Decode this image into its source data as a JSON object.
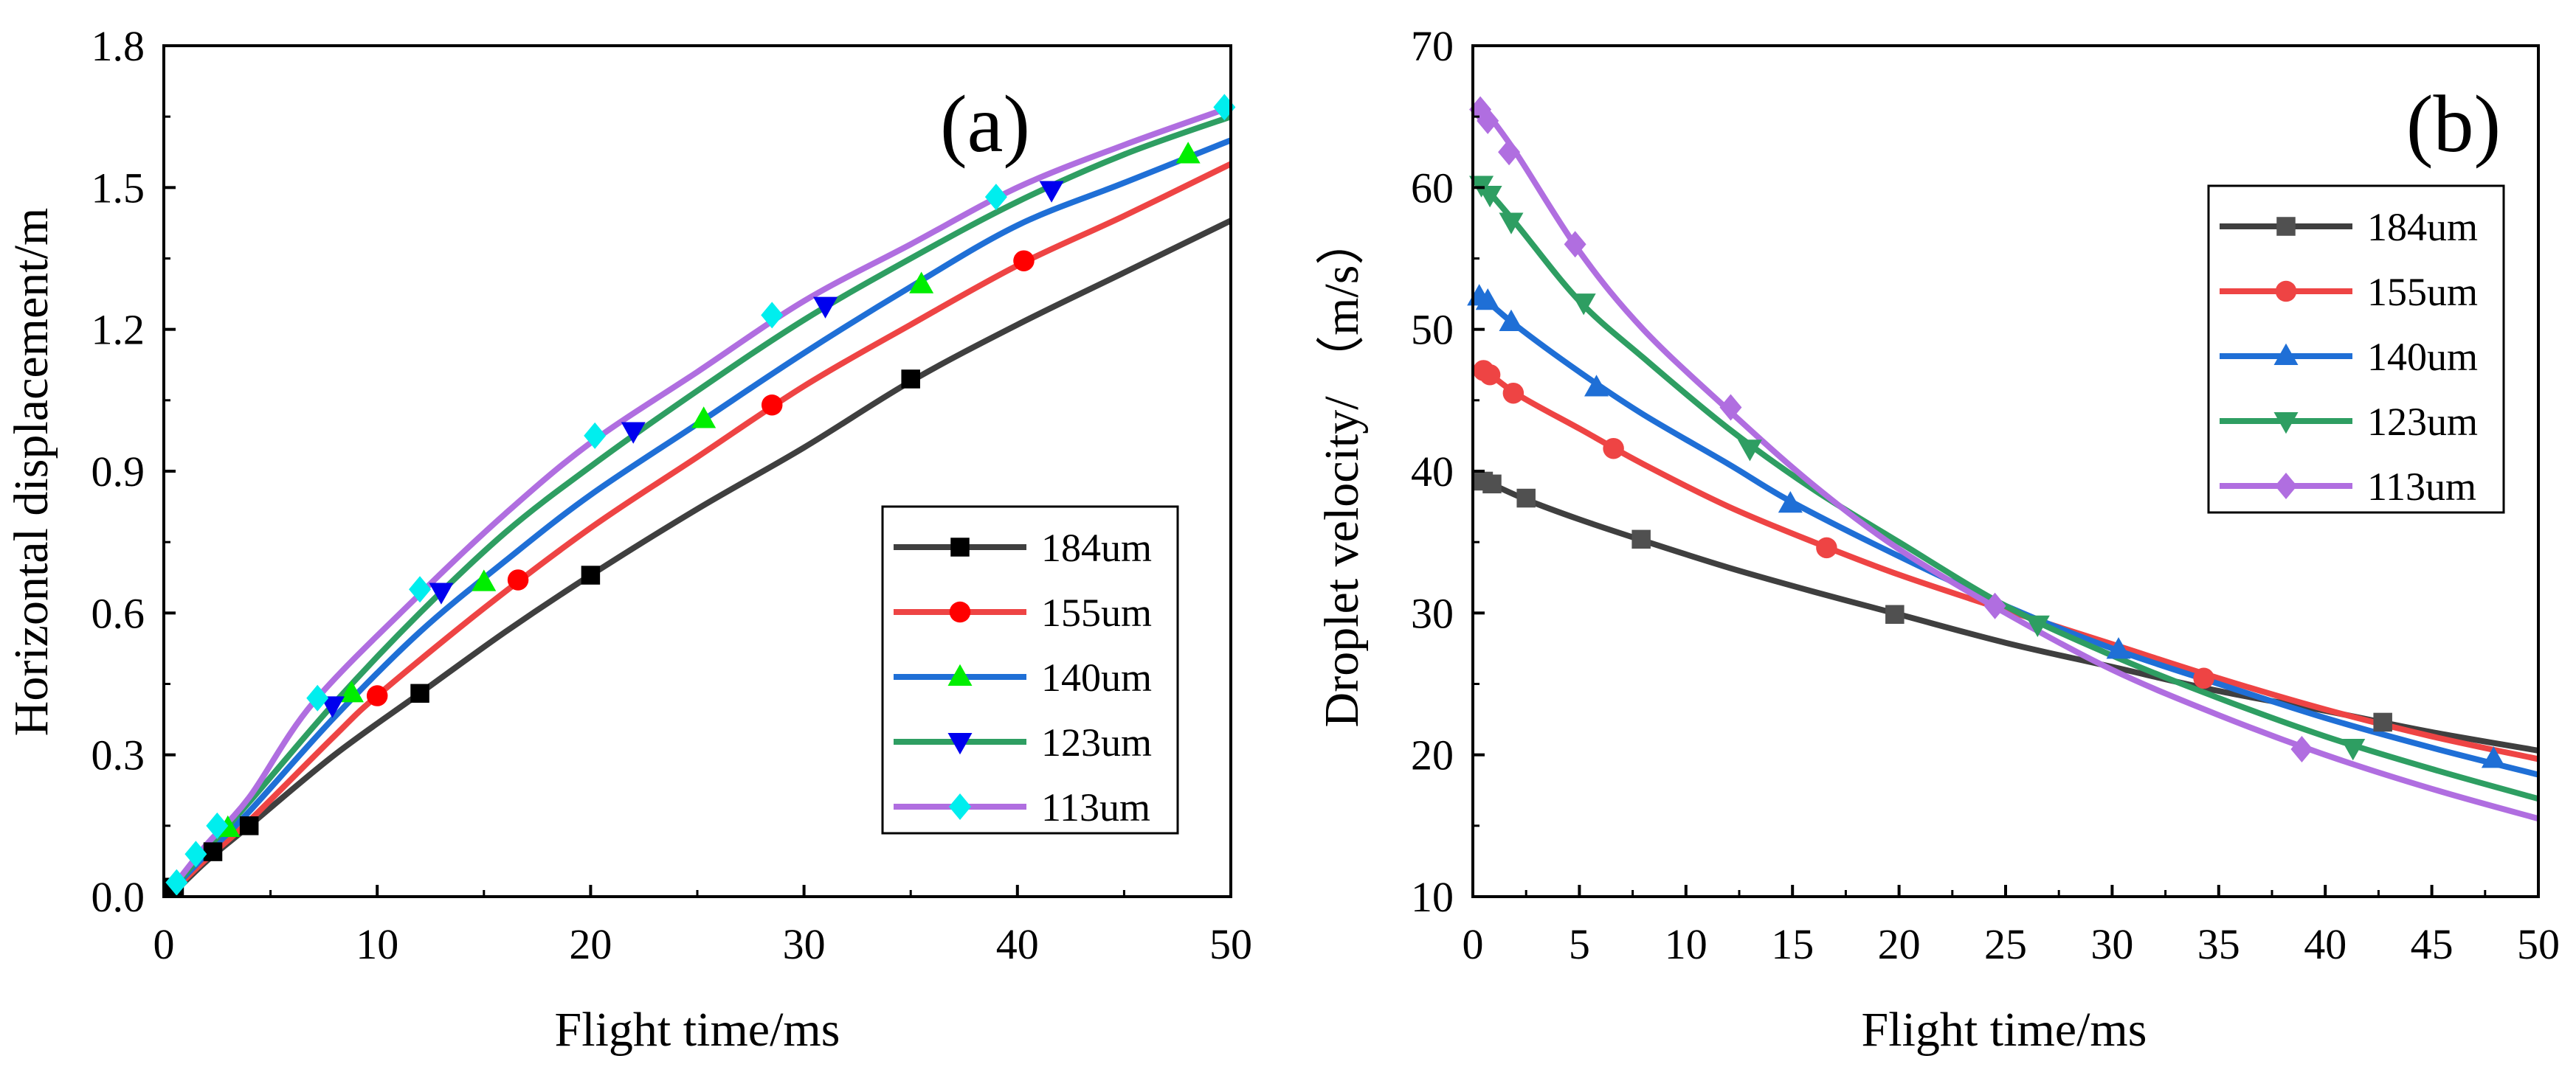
{
  "chart_data": [
    {
      "type": "line",
      "panel": "(a)",
      "xlabel": "Flight time/ms",
      "ylabel": "Horizontal displacement/m",
      "xlim": [
        0,
        50
      ],
      "ylim": [
        0,
        1.8
      ],
      "xticks": [
        "0",
        "10",
        "20",
        "30",
        "40",
        "50"
      ],
      "yticks": [
        "0.0",
        "0.3",
        "0.6",
        "0.9",
        "1.2",
        "1.5",
        "1.8"
      ],
      "xtick_values": [
        0,
        10,
        20,
        30,
        40,
        50
      ],
      "ytick_values": [
        0,
        0.3,
        0.6,
        0.9,
        1.2,
        1.5,
        1.8
      ],
      "legend_position": "bottom-right",
      "series": [
        {
          "name": "184um",
          "line_color": "#3f3f3f",
          "marker_color": "#000000",
          "marker": "square",
          "curve": [
            [
              0.5,
              0.01
            ],
            [
              2,
              0.075
            ],
            [
              4,
              0.15
            ],
            [
              8,
              0.3
            ],
            [
              12,
              0.43
            ],
            [
              16,
              0.56
            ],
            [
              20,
              0.68
            ],
            [
              25,
              0.82
            ],
            [
              30,
              0.95
            ],
            [
              35,
              1.09
            ],
            [
              40,
              1.21
            ],
            [
              45,
              1.32
            ],
            [
              50,
              1.43
            ]
          ],
          "markers": [
            [
              0.5,
              0.02
            ],
            [
              2.3,
              0.095
            ],
            [
              4,
              0.15
            ],
            [
              12,
              0.43
            ],
            [
              20,
              0.68
            ],
            [
              35,
              1.095
            ]
          ]
        },
        {
          "name": "155um",
          "line_color": "#ee4444",
          "marker_color": "#ff0000",
          "marker": "circle",
          "curve": [
            [
              0.5,
              0.015
            ],
            [
              2,
              0.08
            ],
            [
              4,
              0.16
            ],
            [
              8,
              0.34
            ],
            [
              10,
              0.425
            ],
            [
              15,
              0.61
            ],
            [
              20,
              0.78
            ],
            [
              25,
              0.93
            ],
            [
              30,
              1.08
            ],
            [
              35,
              1.21
            ],
            [
              40,
              1.335
            ],
            [
              45,
              1.44
            ],
            [
              50,
              1.55
            ]
          ],
          "markers": [
            [
              10,
              0.425
            ],
            [
              16.6,
              0.67
            ],
            [
              28.5,
              1.04
            ],
            [
              40.3,
              1.345
            ]
          ]
        },
        {
          "name": "140um",
          "line_color": "#1f6fd6",
          "marker_color": "#00ee00",
          "marker": "triangle-up",
          "curve": [
            [
              0.5,
              0.02
            ],
            [
              2,
              0.09
            ],
            [
              4,
              0.18
            ],
            [
              8,
              0.38
            ],
            [
              12,
              0.56
            ],
            [
              16,
              0.71
            ],
            [
              20,
              0.85
            ],
            [
              25,
              1.0
            ],
            [
              30,
              1.15
            ],
            [
              35,
              1.29
            ],
            [
              40,
              1.42
            ],
            [
              45,
              1.51
            ],
            [
              50,
              1.6
            ]
          ],
          "markers": [
            [
              3,
              0.145
            ],
            [
              8.8,
              0.43
            ],
            [
              15,
              0.665
            ],
            [
              25.3,
              1.01
            ],
            [
              35.5,
              1.295
            ],
            [
              48,
              1.57
            ]
          ]
        },
        {
          "name": "123um",
          "line_color": "#2e9e62",
          "marker_color": "#0000ee",
          "marker": "triangle-down",
          "curve": [
            [
              0.5,
              0.022
            ],
            [
              2,
              0.1
            ],
            [
              4,
              0.2
            ],
            [
              8,
              0.41
            ],
            [
              12,
              0.6
            ],
            [
              16,
              0.77
            ],
            [
              20,
              0.91
            ],
            [
              25,
              1.07
            ],
            [
              30,
              1.22
            ],
            [
              35,
              1.35
            ],
            [
              40,
              1.47
            ],
            [
              45,
              1.57
            ],
            [
              50,
              1.65
            ]
          ],
          "markers": [
            [
              7.9,
              0.405
            ],
            [
              13,
              0.645
            ],
            [
              22,
              0.985
            ],
            [
              31,
              1.25
            ],
            [
              41.6,
              1.495
            ]
          ]
        },
        {
          "name": "113um",
          "line_color": "#b06ee0",
          "marker_color": "#00eeee",
          "marker": "diamond",
          "curve": [
            [
              0.5,
              0.025
            ],
            [
              2,
              0.11
            ],
            [
              4,
              0.21
            ],
            [
              7,
              0.41
            ],
            [
              12,
              0.64
            ],
            [
              16,
              0.81
            ],
            [
              20,
              0.96
            ],
            [
              25,
              1.11
            ],
            [
              30,
              1.26
            ],
            [
              35,
              1.38
            ],
            [
              40,
              1.5
            ],
            [
              45,
              1.59
            ],
            [
              50,
              1.67
            ]
          ],
          "markers": [
            [
              0.6,
              0.03
            ],
            [
              1.5,
              0.09
            ],
            [
              2.5,
              0.15
            ],
            [
              7.2,
              0.42
            ],
            [
              12,
              0.65
            ],
            [
              20.2,
              0.975
            ],
            [
              28.5,
              1.23
            ],
            [
              39,
              1.48
            ],
            [
              49.7,
              1.67
            ]
          ]
        }
      ]
    },
    {
      "type": "line",
      "panel": "(b)",
      "xlabel": "Flight time/ms",
      "ylabel": "Droplet velocity/ （m/s）",
      "xlim": [
        0,
        50
      ],
      "ylim": [
        10,
        70
      ],
      "xticks": [
        "0",
        "5",
        "10",
        "15",
        "20",
        "25",
        "30",
        "35",
        "40",
        "45",
        "50"
      ],
      "yticks": [
        "10",
        "20",
        "30",
        "40",
        "50",
        "60",
        "70"
      ],
      "xtick_values": [
        0,
        5,
        10,
        15,
        20,
        25,
        30,
        35,
        40,
        45,
        50
      ],
      "ytick_values": [
        10,
        20,
        30,
        40,
        50,
        60,
        70
      ],
      "legend_position": "top-right",
      "series": [
        {
          "name": "184um",
          "line_color": "#3f3f3f",
          "marker_color": "#505050",
          "marker": "square",
          "curve": [
            [
              0.3,
              39.5
            ],
            [
              2.5,
              38
            ],
            [
              5,
              36.6
            ],
            [
              8,
              35.1
            ],
            [
              12,
              33.2
            ],
            [
              16,
              31.5
            ],
            [
              20,
              29.9
            ],
            [
              25,
              27.9
            ],
            [
              30,
              26.2
            ],
            [
              35,
              24.5
            ],
            [
              40,
              23.1
            ],
            [
              45,
              21.6
            ],
            [
              50,
              20.3
            ]
          ],
          "markers": [
            [
              0.5,
              39.3
            ],
            [
              0.9,
              39.1
            ],
            [
              2.5,
              38.1
            ],
            [
              7.9,
              35.2
            ],
            [
              19.8,
              29.9
            ],
            [
              42.7,
              22.3
            ]
          ]
        },
        {
          "name": "155um",
          "line_color": "#ee4444",
          "marker_color": "#ee4444",
          "marker": "circle",
          "curve": [
            [
              0.3,
              47.5
            ],
            [
              2,
              45.5
            ],
            [
              5,
              43
            ],
            [
              8,
              40.5
            ],
            [
              12,
              37.5
            ],
            [
              16,
              35
            ],
            [
              20,
              32.7
            ],
            [
              25,
              30.2
            ],
            [
              30,
              27.8
            ],
            [
              35,
              25.4
            ],
            [
              40,
              23.2
            ],
            [
              45,
              21.3
            ],
            [
              50,
              19.7
            ]
          ],
          "markers": [
            [
              0.5,
              47.1
            ],
            [
              0.8,
              46.8
            ],
            [
              1.9,
              45.5
            ],
            [
              6.6,
              41.6
            ],
            [
              16.6,
              34.6
            ],
            [
              34.3,
              25.4
            ]
          ]
        },
        {
          "name": "140um",
          "line_color": "#1f6fd6",
          "marker_color": "#1f6fd6",
          "marker": "triangle-up",
          "curve": [
            [
              0.3,
              52.5
            ],
            [
              2,
              50.3
            ],
            [
              5,
              47
            ],
            [
              8,
              44
            ],
            [
              12,
              40.5
            ],
            [
              15,
              37.8
            ],
            [
              20,
              34
            ],
            [
              25,
              30.5
            ],
            [
              30,
              27.5
            ],
            [
              35,
              25
            ],
            [
              40,
              22.6
            ],
            [
              45,
              20.5
            ],
            [
              50,
              18.6
            ]
          ],
          "markers": [
            [
              0.3,
              52.3
            ],
            [
              0.7,
              52
            ],
            [
              1.8,
              50.5
            ],
            [
              5.8,
              45.9
            ],
            [
              14.9,
              37.7
            ],
            [
              30.3,
              27.4
            ],
            [
              47.9,
              19.7
            ]
          ]
        },
        {
          "name": "123um",
          "line_color": "#2e9e62",
          "marker_color": "#2e9e62",
          "marker": "triangle-down",
          "curve": [
            [
              0.3,
              60.5
            ],
            [
              2,
              57.5
            ],
            [
              5,
              52
            ],
            [
              8,
              48
            ],
            [
              12,
              43
            ],
            [
              16,
              38.7
            ],
            [
              20,
              35
            ],
            [
              25,
              30.5
            ],
            [
              30,
              27
            ],
            [
              35,
              24
            ],
            [
              40,
              21.3
            ],
            [
              45,
              19
            ],
            [
              50,
              16.9
            ]
          ],
          "markers": [
            [
              0.4,
              60.2
            ],
            [
              0.8,
              59.5
            ],
            [
              1.8,
              57.6
            ],
            [
              5.2,
              51.9
            ],
            [
              13,
              41.6
            ],
            [
              26.5,
              29.2
            ],
            [
              41.3,
              20.5
            ]
          ]
        },
        {
          "name": "113um",
          "line_color": "#b06ee0",
          "marker_color": "#b06ee0",
          "marker": "diamond",
          "curve": [
            [
              0.3,
              66
            ],
            [
              2,
              62.5
            ],
            [
              5,
              55.5
            ],
            [
              8,
              50
            ],
            [
              12,
              44.3
            ],
            [
              16,
              39
            ],
            [
              20,
              34.5
            ],
            [
              25,
              30
            ],
            [
              30,
              26
            ],
            [
              35,
              22.8
            ],
            [
              40,
              20
            ],
            [
              45,
              17.6
            ],
            [
              50,
              15.5
            ]
          ],
          "markers": [
            [
              0.35,
              65.5
            ],
            [
              0.7,
              64.7
            ],
            [
              1.7,
              62.5
            ],
            [
              4.8,
              56
            ],
            [
              12.1,
              44.5
            ],
            [
              24.5,
              30.5
            ],
            [
              38.9,
              20.4
            ]
          ]
        }
      ]
    }
  ]
}
